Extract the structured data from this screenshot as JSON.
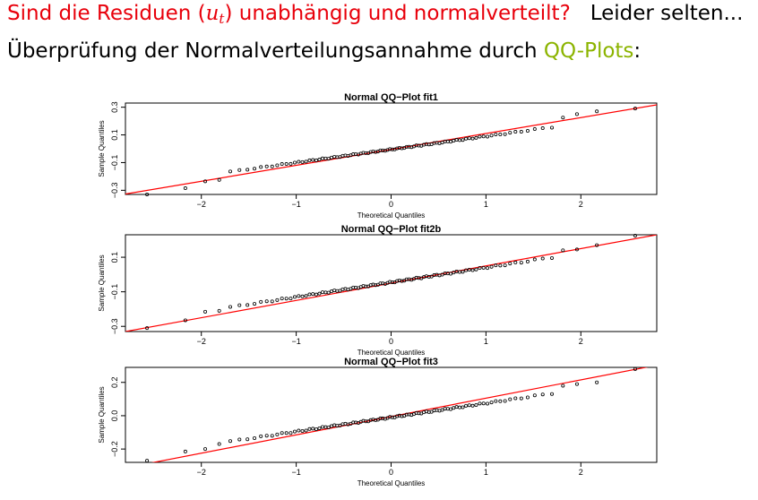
{
  "header": {
    "question_before": "Sind die Residuen (",
    "question_var": "u",
    "question_sub": "t",
    "question_after": ") unabhängig und normalverteilt?",
    "answer": "Leider selten...",
    "intro_text": "Überprüfung der Normalverteilungsannahme durch ",
    "intro_link": "QQ-Plots",
    "intro_colon": ":"
  },
  "colors": {
    "question": "#e8000b",
    "link": "#8cb400",
    "line": "#ff0000",
    "points": "#000000"
  },
  "chart_data": [
    {
      "type": "scatter",
      "title": "Normal QQ−Plot fit1",
      "xlabel": "Theoretical Quantiles",
      "ylabel": "Sample Quantiles",
      "xlim": [
        -2.8,
        2.8
      ],
      "ylim": [
        -0.33,
        0.33
      ],
      "xticks": [
        -2,
        -1,
        0,
        1,
        2
      ],
      "xtick_labels": [
        "−2",
        "−1",
        "0",
        "1",
        "2"
      ],
      "yticks": [
        -0.3,
        -0.1,
        0.1,
        0.3
      ],
      "ytick_labels": [
        "−0.3",
        "−0.1",
        "0.1",
        "0.3"
      ],
      "reference_line": {
        "slope": 0.115,
        "intercept": -0.005
      },
      "points_model": {
        "n": 100,
        "slope": 0.095,
        "intercept": -0.005,
        "tail_low": [
          -0.33,
          -0.285,
          -0.235,
          -0.225
        ],
        "tail_high": [
          0.29,
          0.27,
          0.25,
          0.225
        ]
      }
    },
    {
      "type": "scatter",
      "title": "Normal QQ−Plot fit2b",
      "xlabel": "Theoretical Quantiles",
      "ylabel": "Sample Quantiles",
      "xlim": [
        -2.8,
        2.8
      ],
      "ylim": [
        -0.33,
        0.23
      ],
      "xticks": [
        -2,
        -1,
        0,
        1,
        2
      ],
      "xtick_labels": [
        "−2",
        "−1",
        "0",
        "1",
        "2"
      ],
      "yticks": [
        -0.3,
        -0.1,
        0.1
      ],
      "ytick_labels": [
        "−0.3",
        "−0.1",
        "0.1"
      ],
      "reference_line": {
        "slope": 0.1,
        "intercept": -0.05
      },
      "points_model": {
        "n": 100,
        "slope": 0.085,
        "intercept": -0.045,
        "tail_low": [
          -0.31,
          -0.265,
          -0.215,
          -0.21
        ],
        "tail_high": [
          0.225,
          0.17,
          0.145,
          0.14
        ]
      }
    },
    {
      "type": "scatter",
      "title": "Normal QQ−Plot fit3",
      "xlabel": "Theoretical Quantiles",
      "ylabel": "Sample Quantiles",
      "xlim": [
        -2.8,
        2.8
      ],
      "ylim": [
        -0.28,
        0.29
      ],
      "xticks": [
        -2,
        -1,
        0,
        1,
        2
      ],
      "xtick_labels": [
        "−2",
        "−1",
        "0",
        "1",
        "2"
      ],
      "yticks": [
        -0.2,
        0.0,
        0.2
      ],
      "ytick_labels": [
        "−0.2",
        "0.0",
        "0.2"
      ],
      "reference_line": {
        "slope": 0.11,
        "intercept": -0.005
      },
      "points_model": {
        "n": 100,
        "slope": 0.085,
        "intercept": -0.01,
        "tail_low": [
          -0.27,
          -0.215,
          -0.2,
          -0.17
        ],
        "tail_high": [
          0.28,
          0.2,
          0.19,
          0.18
        ]
      }
    }
  ]
}
